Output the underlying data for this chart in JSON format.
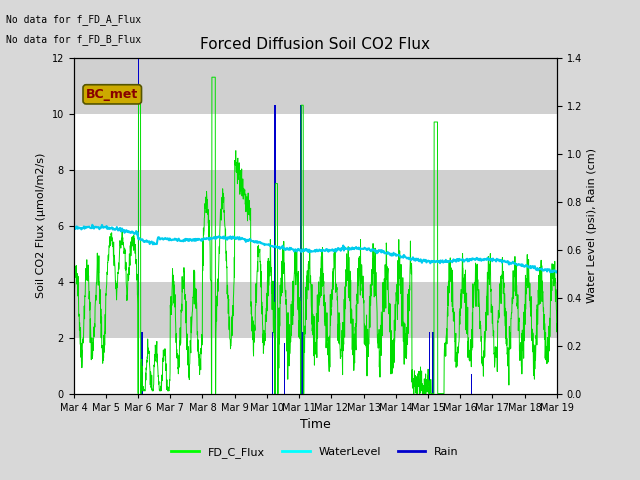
{
  "title": "Forced Diffusion Soil CO2 Flux",
  "xlabel": "Time",
  "ylabel_left": "Soil CO2 Flux (μmol/m2/s)",
  "ylabel_right": "Water Level (psi), Rain (cm)",
  "no_data_text_1": "No data for f_FD_A_Flux",
  "no_data_text_2": "No data for f_FD_B_Flux",
  "bc_met_label": "BC_met",
  "bc_met_bg": "#ccaa00",
  "bc_met_fg": "#880000",
  "x_tick_labels": [
    "Mar 4",
    "Mar 5",
    "Mar 6",
    "Mar 7",
    "Mar 8",
    "Mar 9",
    "Mar 10",
    "Mar 11",
    "Mar 12",
    "Mar 13",
    "Mar 14",
    "Mar 15",
    "Mar 16",
    "Mar 17",
    "Mar 18",
    "Mar 19"
  ],
  "ylim_left": [
    0,
    12
  ],
  "ylim_right": [
    0.0,
    1.4
  ],
  "legend_entries": [
    "FD_C_Flux",
    "WaterLevel",
    "Rain"
  ],
  "legend_colors": [
    "#00ff00",
    "#00ffff",
    "#0000cc"
  ],
  "fd_c_color": "#00dd00",
  "water_level_color": "#00ccee",
  "rain_color": "#0000cc",
  "fig_bg_color": "#d8d8d8",
  "plot_bg_color": "#e8e8e8",
  "band_color_dark": "#d0d0d0",
  "grid_color": "#ffffff"
}
